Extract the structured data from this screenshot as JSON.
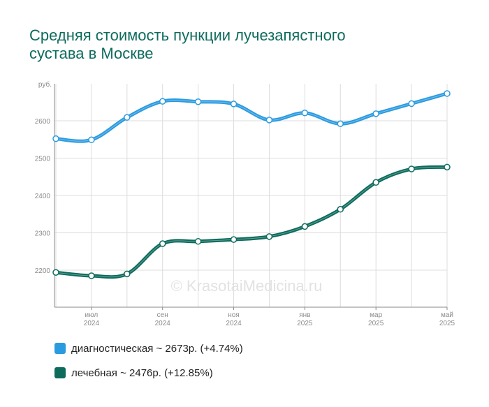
{
  "title_lines": [
    "Средняя стоимость пункции лучезапястного",
    "сустава в Москве"
  ],
  "watermark": "© KrasotaiMedicina.ru",
  "chart_data": {
    "type": "line",
    "title": "Средняя стоимость пункции лучезапястного сустава в Москве",
    "y_unit": "руб.",
    "ylim": [
      2100,
      2600
    ],
    "y_ticks": [
      2200,
      2300,
      2400,
      2500,
      2600
    ],
    "x_ticks": [
      {
        "month": "июл",
        "year": "2024"
      },
      {
        "month": "сен",
        "year": "2024"
      },
      {
        "month": "ноя",
        "year": "2024"
      },
      {
        "month": "янв",
        "year": "2025"
      },
      {
        "month": "мар",
        "year": "2025"
      },
      {
        "month": "май",
        "year": "2025"
      }
    ],
    "x": [
      "2024-06",
      "2024-07",
      "2024-08",
      "2024-09",
      "2024-10",
      "2024-11",
      "2024-12",
      "2025-01",
      "2025-02",
      "2025-03",
      "2025-04",
      "2025-05"
    ],
    "grid": true,
    "series": [
      {
        "name": "диагностическая",
        "color": "#2b9be0",
        "values": [
          2552,
          2549,
          2609,
          2652,
          2651,
          2645,
          2602,
          2621,
          2592,
          2619,
          2646,
          2673
        ]
      },
      {
        "name": "лечебная",
        "color": "#0d6b5c",
        "values": [
          2194,
          2185,
          2190,
          2271,
          2277,
          2282,
          2290,
          2317,
          2363,
          2435,
          2471,
          2476
        ]
      }
    ]
  },
  "legend": [
    {
      "label": "диагностическая ~ 2673р. (+4.74%)",
      "color": "#2b9be0"
    },
    {
      "label": "лечебная ~ 2476р. (+12.85%)",
      "color": "#0d6b5c"
    }
  ]
}
